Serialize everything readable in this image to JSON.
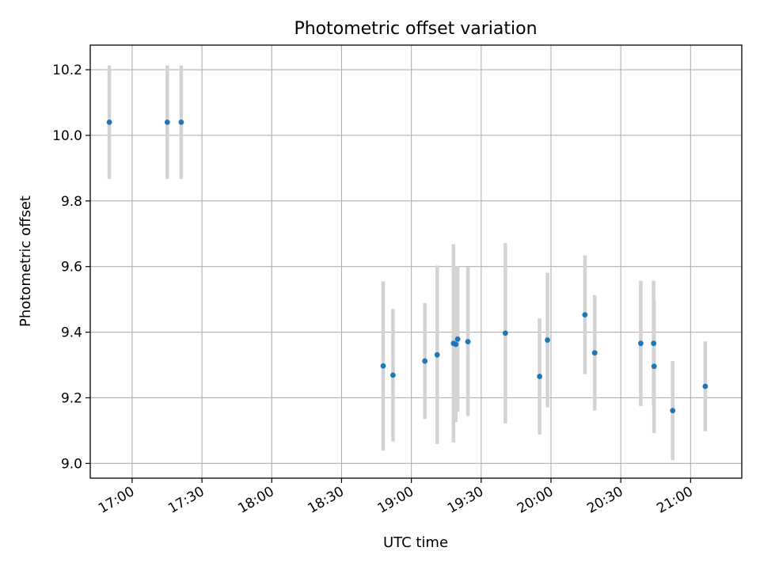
{
  "chart_data": {
    "type": "scatter",
    "title": "Photometric offset variation",
    "xlabel": "UTC time",
    "ylabel": "Photometric offset",
    "x_unit": "minutes since 00:00 UTC",
    "xlim": [
      1002,
      1282
    ],
    "ylim": [
      8.955,
      10.275
    ],
    "grid": true,
    "xticks": [
      {
        "value": 1020,
        "label": "17:00"
      },
      {
        "value": 1050,
        "label": "17:30"
      },
      {
        "value": 1080,
        "label": "18:00"
      },
      {
        "value": 1110,
        "label": "18:30"
      },
      {
        "value": 1140,
        "label": "19:00"
      },
      {
        "value": 1170,
        "label": "19:30"
      },
      {
        "value": 1200,
        "label": "20:00"
      },
      {
        "value": 1230,
        "label": "20:30"
      },
      {
        "value": 1260,
        "label": "21:00"
      }
    ],
    "yticks": [
      {
        "value": 9.0,
        "label": "9.0"
      },
      {
        "value": 9.2,
        "label": "9.2"
      },
      {
        "value": 9.4,
        "label": "9.4"
      },
      {
        "value": 9.6,
        "label": "9.6"
      },
      {
        "value": 9.8,
        "label": "9.8"
      },
      {
        "value": 10.0,
        "label": "10.0"
      },
      {
        "value": 10.2,
        "label": "10.2"
      }
    ],
    "series": [
      {
        "name": "photometric offset",
        "color": "#1f77b4",
        "error_color": "#d3d3d3",
        "points": [
          {
            "x": 1010.2,
            "y": 10.04,
            "err": 0.173
          },
          {
            "x": 1035.1,
            "y": 10.04,
            "err": 0.173
          },
          {
            "x": 1041.1,
            "y": 10.04,
            "err": 0.173
          },
          {
            "x": 1127.9,
            "y": 9.297,
            "err": 0.258
          },
          {
            "x": 1132.1,
            "y": 9.269,
            "err": 0.202
          },
          {
            "x": 1145.8,
            "y": 9.312,
            "err": 0.177
          },
          {
            "x": 1151.1,
            "y": 9.331,
            "err": 0.272
          },
          {
            "x": 1158.1,
            "y": 9.366,
            "err": 0.302
          },
          {
            "x": 1159.1,
            "y": 9.363,
            "err": 0.237
          },
          {
            "x": 1159.9,
            "y": 9.379,
            "err": 0.222
          },
          {
            "x": 1164.3,
            "y": 9.371,
            "err": 0.227
          },
          {
            "x": 1180.4,
            "y": 9.397,
            "err": 0.275
          },
          {
            "x": 1195.1,
            "y": 9.265,
            "err": 0.177
          },
          {
            "x": 1198.5,
            "y": 9.376,
            "err": 0.205
          },
          {
            "x": 1214.6,
            "y": 9.453,
            "err": 0.181
          },
          {
            "x": 1218.8,
            "y": 9.337,
            "err": 0.176
          },
          {
            "x": 1238.6,
            "y": 9.366,
            "err": 0.191
          },
          {
            "x": 1244.1,
            "y": 9.366,
            "err": 0.191
          },
          {
            "x": 1244.3,
            "y": 9.296,
            "err": 0.203
          },
          {
            "x": 1252.3,
            "y": 9.161,
            "err": 0.151
          },
          {
            "x": 1266.3,
            "y": 9.235,
            "err": 0.137
          }
        ]
      }
    ]
  }
}
